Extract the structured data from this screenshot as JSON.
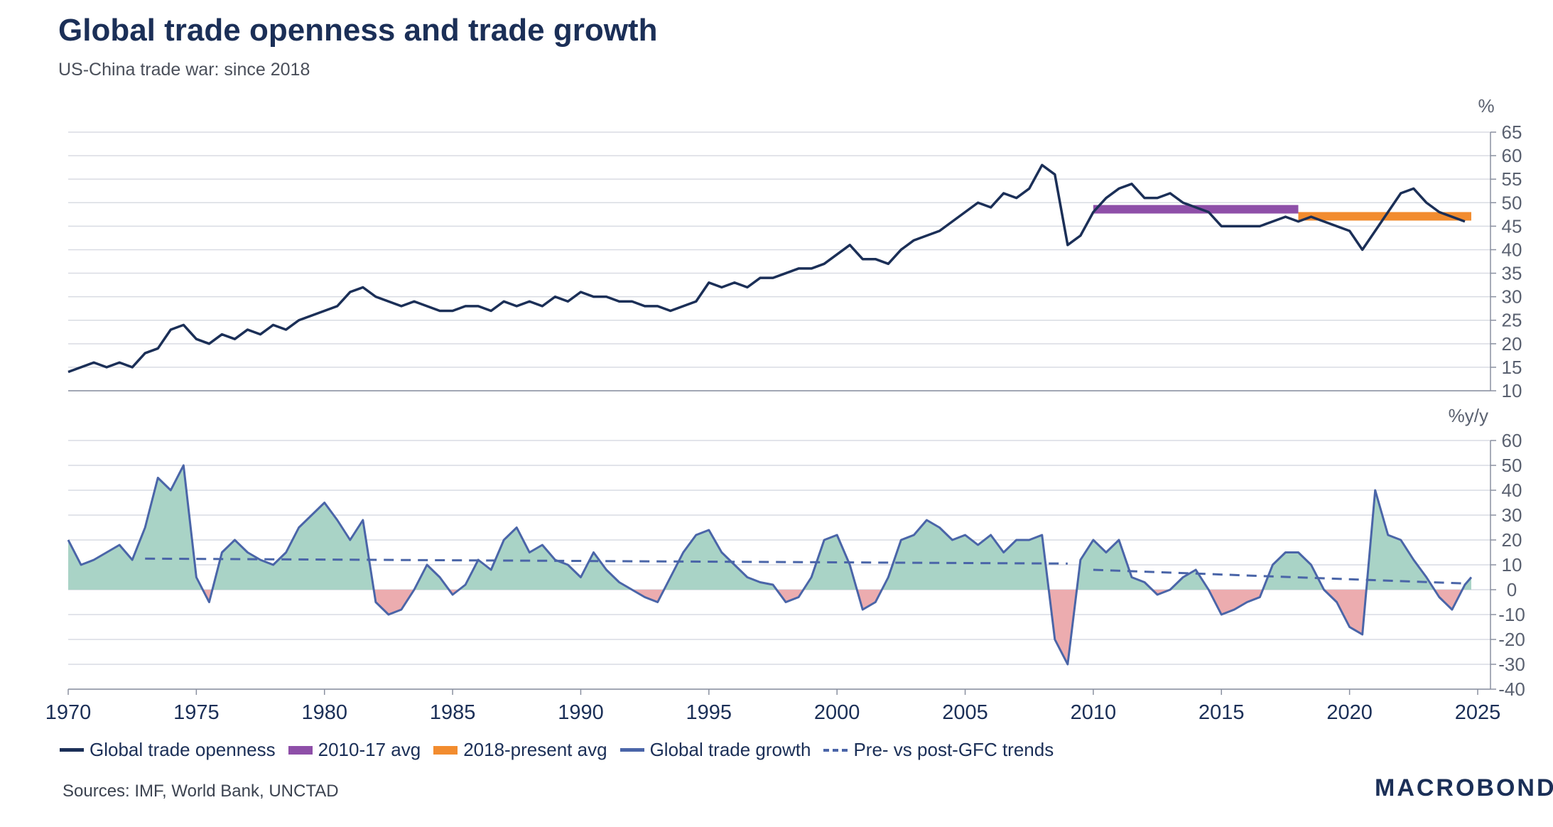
{
  "title": "Global trade openness and trade growth",
  "subtitle": "US-China trade war: since 2018",
  "sources": "Sources: IMF, World Bank, UNCTAD",
  "logo": "MACROBOND",
  "colors": {
    "openness": "#1b2f57",
    "avg_2010_17": "#8e4fa8",
    "avg_2018_present": "#f28c2f",
    "growth": "#4a65a8",
    "pos_fill": "#a9d3c6",
    "neg_fill": "#ecacaf",
    "grid": "#d9dce3"
  },
  "legend": {
    "openness": "Global trade openness",
    "avg_2010_17": "2010-17 avg",
    "avg_2018_present": "2018-present avg",
    "growth": "Global trade growth",
    "trends": "Pre- vs post-GFC trends"
  },
  "chart_data": [
    {
      "type": "line",
      "ylabel": "%",
      "ylim": [
        10,
        65
      ],
      "yticks": [
        10,
        15,
        20,
        25,
        30,
        35,
        40,
        45,
        50,
        55,
        60,
        65
      ],
      "xlim": [
        1970,
        2025
      ],
      "grid": true,
      "series": [
        {
          "name": "Global trade openness",
          "x": [
            1970.0,
            1970.5,
            1971.0,
            1971.5,
            1972.0,
            1972.5,
            1973.0,
            1973.5,
            1974.0,
            1974.5,
            1975.0,
            1975.5,
            1976.0,
            1976.5,
            1977.0,
            1977.5,
            1978.0,
            1978.5,
            1979.0,
            1979.5,
            1980.0,
            1980.5,
            1981.0,
            1981.5,
            1982.0,
            1982.5,
            1983.0,
            1983.5,
            1984.0,
            1984.5,
            1985.0,
            1985.5,
            1986.0,
            1986.5,
            1987.0,
            1987.5,
            1988.0,
            1988.5,
            1989.0,
            1989.5,
            1990.0,
            1990.5,
            1991.0,
            1991.5,
            1992.0,
            1992.5,
            1993.0,
            1993.5,
            1994.0,
            1994.5,
            1995.0,
            1995.5,
            1996.0,
            1996.5,
            1997.0,
            1997.5,
            1998.0,
            1998.5,
            1999.0,
            1999.5,
            2000.0,
            2000.5,
            2001.0,
            2001.5,
            2002.0,
            2002.5,
            2003.0,
            2003.5,
            2004.0,
            2004.5,
            2005.0,
            2005.5,
            2006.0,
            2006.5,
            2007.0,
            2007.5,
            2008.0,
            2008.5,
            2009.0,
            2009.5,
            2010.0,
            2010.5,
            2011.0,
            2011.5,
            2012.0,
            2012.5,
            2013.0,
            2013.5,
            2014.0,
            2014.5,
            2015.0,
            2015.5,
            2016.0,
            2016.5,
            2017.0,
            2017.5,
            2018.0,
            2018.5,
            2019.0,
            2019.5,
            2020.0,
            2020.5,
            2021.0,
            2021.5,
            2022.0,
            2022.5,
            2023.0,
            2023.5,
            2024.0,
            2024.5
          ],
          "y": [
            14,
            15,
            16,
            15,
            16,
            15,
            18,
            19,
            23,
            24,
            21,
            20,
            22,
            21,
            23,
            22,
            24,
            23,
            25,
            26,
            27,
            28,
            31,
            32,
            30,
            29,
            28,
            29,
            28,
            27,
            27,
            28,
            28,
            27,
            29,
            28,
            29,
            28,
            30,
            29,
            31,
            30,
            30,
            29,
            29,
            28,
            28,
            27,
            28,
            29,
            33,
            32,
            33,
            32,
            34,
            34,
            35,
            36,
            36,
            37,
            39,
            41,
            38,
            38,
            37,
            40,
            42,
            43,
            44,
            46,
            48,
            50,
            49,
            52,
            51,
            53,
            58,
            56,
            41,
            43,
            48,
            51,
            53,
            54,
            51,
            51,
            52,
            50,
            49,
            48,
            45,
            45,
            45,
            45,
            46,
            47,
            46,
            47,
            46,
            45,
            44,
            40,
            44,
            48,
            52,
            53,
            50,
            48,
            47,
            46
          ]
        },
        {
          "name": "2010-17 avg",
          "x": [
            2010,
            2018
          ],
          "y": [
            48.6,
            48.6
          ]
        },
        {
          "name": "2018-present avg",
          "x": [
            2018,
            2024.75
          ],
          "y": [
            47.1,
            47.1
          ]
        }
      ]
    },
    {
      "type": "area",
      "ylabel": "%y/y",
      "ylim": [
        -40,
        60
      ],
      "yticks": [
        -40,
        -30,
        -20,
        -10,
        0,
        10,
        20,
        30,
        40,
        50,
        60
      ],
      "xlim": [
        1970,
        2025
      ],
      "xticks": [
        1970,
        1975,
        1980,
        1985,
        1990,
        1995,
        2000,
        2005,
        2010,
        2015,
        2020,
        2025
      ],
      "grid": true,
      "series": [
        {
          "name": "Global trade growth",
          "x": [
            1970.0,
            1970.5,
            1971.0,
            1971.5,
            1972.0,
            1972.5,
            1973.0,
            1973.5,
            1974.0,
            1974.5,
            1975.0,
            1975.5,
            1976.0,
            1976.5,
            1977.0,
            1977.5,
            1978.0,
            1978.5,
            1979.0,
            1979.5,
            1980.0,
            1980.5,
            1981.0,
            1981.5,
            1982.0,
            1982.5,
            1983.0,
            1983.5,
            1984.0,
            1984.5,
            1985.0,
            1985.5,
            1986.0,
            1986.5,
            1987.0,
            1987.5,
            1988.0,
            1988.5,
            1989.0,
            1989.5,
            1990.0,
            1990.5,
            1991.0,
            1991.5,
            1992.0,
            1992.5,
            1993.0,
            1993.5,
            1994.0,
            1994.5,
            1995.0,
            1995.5,
            1996.0,
            1996.5,
            1997.0,
            1997.5,
            1998.0,
            1998.5,
            1999.0,
            1999.5,
            2000.0,
            2000.5,
            2001.0,
            2001.5,
            2002.0,
            2002.5,
            2003.0,
            2003.5,
            2004.0,
            2004.5,
            2005.0,
            2005.5,
            2006.0,
            2006.5,
            2007.0,
            2007.5,
            2008.0,
            2008.5,
            2009.0,
            2009.5,
            2010.0,
            2010.5,
            2011.0,
            2011.5,
            2012.0,
            2012.5,
            2013.0,
            2013.5,
            2014.0,
            2014.5,
            2015.0,
            2015.5,
            2016.0,
            2016.5,
            2017.0,
            2017.5,
            2018.0,
            2018.5,
            2019.0,
            2019.5,
            2020.0,
            2020.5,
            2021.0,
            2021.5,
            2022.0,
            2022.5,
            2023.0,
            2023.5,
            2024.0,
            2024.5,
            2024.75
          ],
          "y": [
            20,
            10,
            12,
            15,
            18,
            12,
            25,
            45,
            40,
            50,
            5,
            -5,
            15,
            20,
            15,
            12,
            10,
            15,
            25,
            30,
            35,
            28,
            20,
            28,
            -5,
            -10,
            -8,
            0,
            10,
            5,
            -2,
            2,
            12,
            8,
            20,
            25,
            15,
            18,
            12,
            10,
            5,
            15,
            8,
            3,
            0,
            -3,
            -5,
            5,
            15,
            22,
            24,
            15,
            10,
            5,
            3,
            2,
            -5,
            -3,
            5,
            20,
            22,
            10,
            -8,
            -5,
            5,
            20,
            22,
            28,
            25,
            20,
            22,
            18,
            22,
            15,
            20,
            20,
            22,
            -20,
            -30,
            12,
            20,
            15,
            20,
            5,
            3,
            -2,
            0,
            5,
            8,
            0,
            -10,
            -8,
            -5,
            -3,
            10,
            15,
            15,
            10,
            0,
            -5,
            -15,
            -18,
            40,
            22,
            20,
            12,
            5,
            -3,
            -8,
            2,
            5
          ]
        },
        {
          "name": "Pre- vs post-GFC trends",
          "x": [
            1973,
            2009,
            2010,
            2024.5
          ],
          "y": [
            12.5,
            10.5,
            8,
            2.5
          ]
        }
      ]
    }
  ]
}
